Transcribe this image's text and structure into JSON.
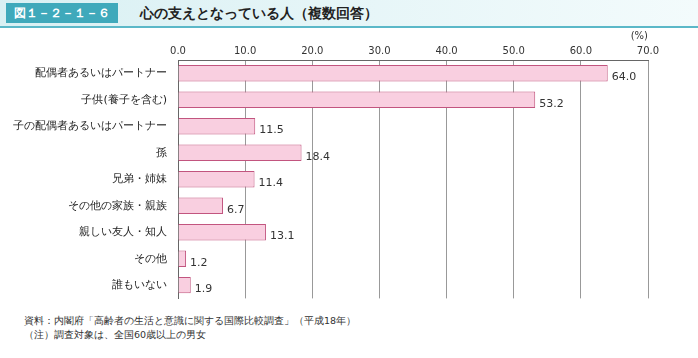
{
  "chart_data": {
    "type": "bar",
    "orientation": "horizontal",
    "figure_label": "図１－２－１－６",
    "title": "心の支えとなっている人（複数回答）",
    "xlabel": "(%)",
    "categories": [
      "配偶者あるいはパートナー",
      "子供(養子を含む)",
      "子の配偶者あるいはパートナー",
      "孫",
      "兄弟・姉妹",
      "その他の家族・親族",
      "親しい友人・知人",
      "その他",
      "誰もいない"
    ],
    "values": [
      64.0,
      53.2,
      11.5,
      18.4,
      11.4,
      6.7,
      13.1,
      1.2,
      1.9
    ],
    "value_labels": [
      "64.0",
      "53.2",
      "11.5",
      "18.4",
      "11.4",
      "6.7",
      "13.1",
      "1.2",
      "1.9"
    ],
    "data_labels": true,
    "color": "#f9cfe0",
    "xlim": [
      0,
      70
    ],
    "xticks": [
      {
        "value": 0,
        "label": "0.0"
      },
      {
        "value": 10,
        "label": "10.0"
      },
      {
        "value": 20,
        "label": "20.0"
      },
      {
        "value": 30,
        "label": "30.0"
      },
      {
        "value": 40,
        "label": "40.0"
      },
      {
        "value": 50,
        "label": "50.0"
      },
      {
        "value": 60,
        "label": "60.0"
      },
      {
        "value": 70,
        "label": "70.0"
      }
    ],
    "grid": true,
    "notes": [
      "資料：内閣府「高齢者の生活と意識に関する国際比較調査」（平成18年）",
      "（注）調査対象は、全国60歳以上の男女"
    ]
  }
}
